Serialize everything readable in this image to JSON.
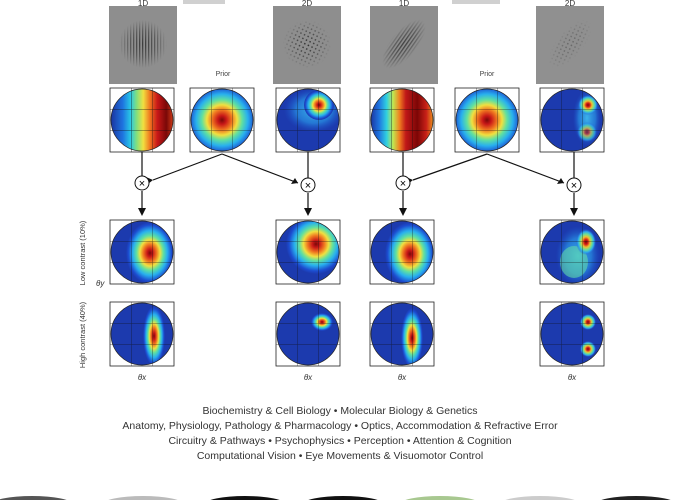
{
  "figure": {
    "stimulus_labels": [
      "1D",
      "2D",
      "1D",
      "2D"
    ],
    "prior_label": "Prior",
    "operator_symbol": "×",
    "row_labels": [
      "Low contrast (10%)",
      "High contrast (40%)"
    ],
    "axis_y_label": "θy",
    "axis_x_labels": [
      "θx",
      "θx",
      "θx",
      "θx"
    ]
  },
  "topics": [
    "Biochemistry & Cell Biology • Molecular Biology & Genetics",
    "Anatomy, Physiology, Pathology & Pharmacology • Optics, Accommodation & Refractive Error",
    "Circuitry & Pathways • Psychophysics • Perception • Attention & Cognition",
    "Computational Vision • Eye Movements & Visuomotor Control"
  ]
}
